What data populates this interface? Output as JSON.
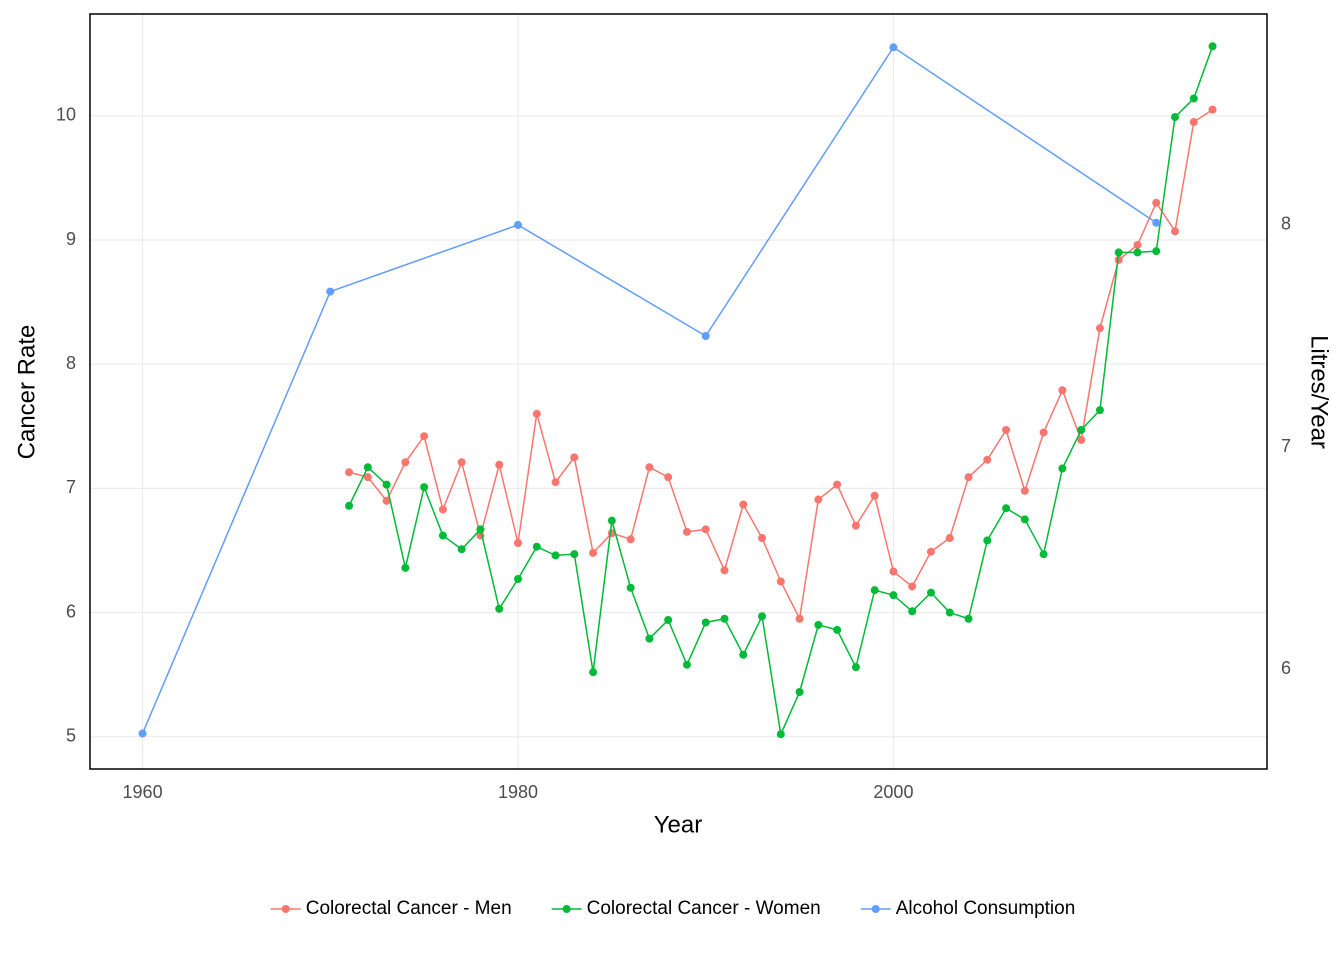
{
  "chart_data": {
    "type": "line",
    "x_label": "Year",
    "y_label": "Cancer Rate",
    "y2_label": "Litres/Year",
    "xlim": [
      1957.2,
      2019.9
    ],
    "xticks": [
      1960,
      1980,
      2000
    ],
    "ylim": [
      4.74,
      10.82
    ],
    "yticks": [
      5,
      6,
      7,
      8,
      9,
      10
    ],
    "y2lim": [
      5.55,
      8.95
    ],
    "y2ticks": [
      6,
      7,
      8
    ],
    "grid": true,
    "legend": "bottom",
    "series": [
      {
        "name": "Colorectal Cancer - Men",
        "color": "#F8766D",
        "x": [
          1971,
          1972,
          1973,
          1974,
          1975,
          1976,
          1977,
          1978,
          1979,
          1980,
          1981,
          1982,
          1983,
          1984,
          1985,
          1986,
          1987,
          1988,
          1989,
          1990,
          1991,
          1992,
          1993,
          1994,
          1995,
          1996,
          1997,
          1998,
          1999,
          2000,
          2001,
          2002,
          2003,
          2004,
          2005,
          2006,
          2007,
          2008,
          2009,
          2010,
          2011,
          2012,
          2013,
          2014,
          2015,
          2016,
          2017
        ],
        "values": [
          7.13,
          7.09,
          6.9,
          7.21,
          7.42,
          6.83,
          7.21,
          6.62,
          7.19,
          6.56,
          7.6,
          7.05,
          7.25,
          6.48,
          6.64,
          6.59,
          7.17,
          7.09,
          6.65,
          6.67,
          6.34,
          6.87,
          6.6,
          6.25,
          5.95,
          6.91,
          7.03,
          6.7,
          6.94,
          6.33,
          6.21,
          6.49,
          6.6,
          7.09,
          7.23,
          7.47,
          6.98,
          7.45,
          7.79,
          7.39,
          8.29,
          8.84,
          8.96,
          9.3,
          9.07,
          9.95,
          10.05
        ]
      },
      {
        "name": "Colorectal Cancer - Women",
        "color": "#00BA38",
        "x": [
          1971,
          1972,
          1973,
          1974,
          1975,
          1976,
          1977,
          1978,
          1979,
          1980,
          1981,
          1982,
          1983,
          1984,
          1985,
          1986,
          1987,
          1988,
          1989,
          1990,
          1991,
          1992,
          1993,
          1994,
          1995,
          1996,
          1997,
          1998,
          1999,
          2000,
          2001,
          2002,
          2003,
          2004,
          2005,
          2006,
          2007,
          2008,
          2009,
          2010,
          2011,
          2012,
          2013,
          2014,
          2015,
          2016,
          2017
        ],
        "values": [
          6.86,
          7.17,
          7.03,
          6.36,
          7.01,
          6.62,
          6.51,
          6.67,
          6.03,
          6.27,
          6.53,
          6.46,
          6.47,
          5.52,
          6.74,
          6.2,
          5.79,
          5.94,
          5.58,
          5.92,
          5.95,
          5.66,
          5.97,
          5.02,
          5.36,
          5.9,
          5.86,
          5.56,
          6.18,
          6.14,
          6.01,
          6.16,
          6.0,
          5.95,
          6.58,
          6.84,
          6.75,
          6.47,
          7.16,
          7.47,
          7.63,
          8.9,
          8.9,
          8.91,
          9.99,
          10.14,
          10.56
        ]
      },
      {
        "name": "Alcohol Consumption",
        "color": "#619CFF",
        "axis": "y2",
        "x": [
          1960,
          1970,
          1980,
          1990,
          2000,
          2014
        ],
        "values": [
          5.71,
          7.7,
          8.0,
          7.5,
          8.8,
          8.01
        ]
      }
    ]
  }
}
